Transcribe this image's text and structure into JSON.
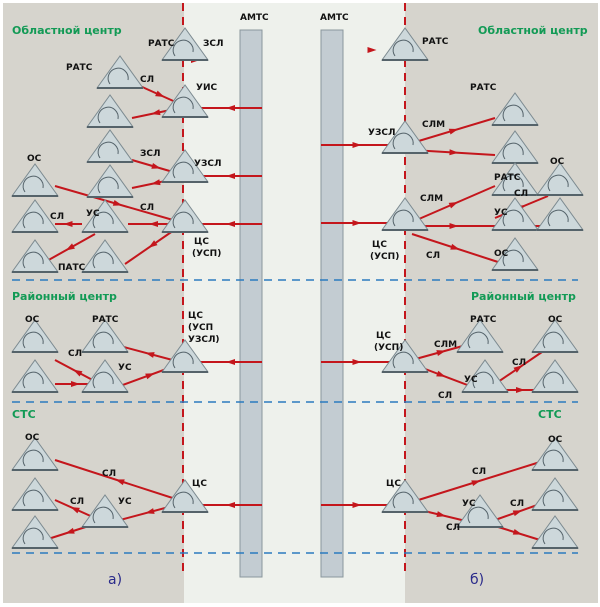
{
  "colors": {
    "panel": "#d6d4cd",
    "center": "#eef1ec",
    "bar": "#c3ccd2",
    "link": "#c4161c",
    "level_divider": "#2b7bbf",
    "title": "#129a55",
    "node": "#cdd8db"
  },
  "left": {
    "titles": {
      "regional": "Областной центр",
      "district": "Районный центр",
      "rural": "СТС"
    },
    "caption": "а)",
    "labels": {
      "ratc_top": "РАТС",
      "zsl_top": "ЗСЛ",
      "ratc2": "РАТС",
      "sl1": "СЛ",
      "uis": "УИС",
      "zsl2": "ЗСЛ",
      "uzsl": "УЗСЛ",
      "os1": "ОС",
      "sl2": "СЛ",
      "sl3": "СЛ",
      "us1": "УС",
      "cs1": "ЦС",
      "cs1b": "(УСП)",
      "pats": "ПАТС",
      "os2": "ОС",
      "ratc3": "РАТС",
      "cs2": "ЦС",
      "cs2b": "(УСП",
      "cs2c": "УЗСЛ)",
      "sl4": "СЛ",
      "us2": "УС",
      "os3": "ОС",
      "sl5": "СЛ",
      "sl6": "СЛ",
      "us3": "УС",
      "cs3": "ЦС"
    }
  },
  "right": {
    "titles": {
      "regional": "Областной центр",
      "district": "Районный центр",
      "rural": "СТС"
    },
    "caption": "б)",
    "labels": {
      "ratc_top": "РАТС",
      "ratc2": "РАТС",
      "slm1": "СЛМ",
      "uzsl": "УЗСЛ",
      "ratc3": "РАТС",
      "os1": "ОС",
      "slm2": "СЛМ",
      "sl1": "СЛ",
      "us1": "УС",
      "cs1": "ЦС",
      "cs1b": "(УСП)",
      "sl2": "СЛ",
      "os2": "ОС",
      "cs2": "ЦС",
      "cs2b": "(УСП)",
      "slm3": "СЛМ",
      "ratc4": "РАТС",
      "os3": "ОС",
      "sl3": "СЛ",
      "us2": "УС",
      "sl4": "СЛ",
      "os4": "ОС",
      "sl5": "СЛ",
      "cs3": "ЦС",
      "us3": "УС",
      "sl6": "СЛ",
      "sl7": "СЛ"
    }
  },
  "center": {
    "left_exchange": "АМТС",
    "right_exchange": "АМТС"
  }
}
